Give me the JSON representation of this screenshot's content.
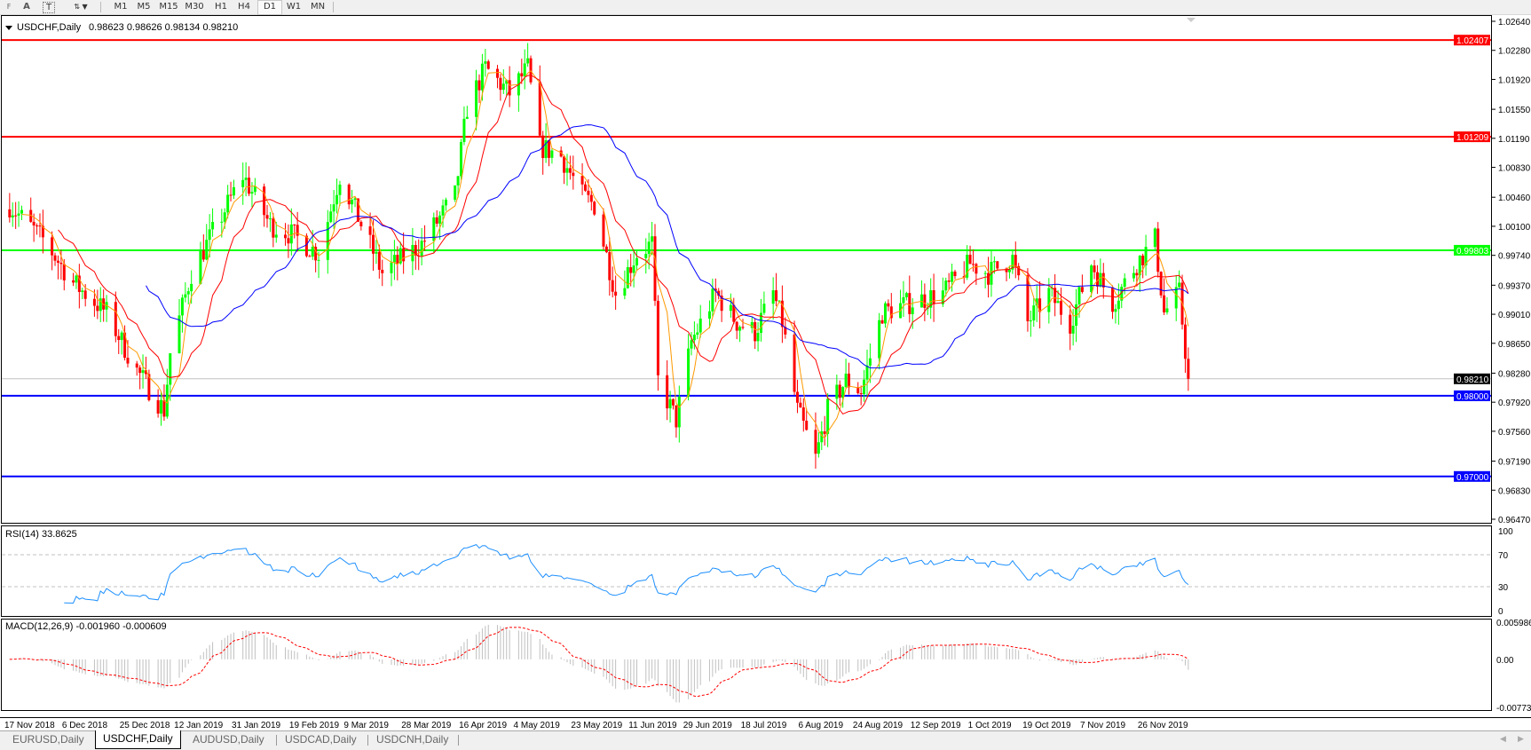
{
  "toolbar": {
    "tools": [
      {
        "icon": "period-separator-icon",
        "label": "F"
      },
      {
        "icon": "text-icon",
        "label": "A"
      },
      {
        "icon": "text-label-icon",
        "label": "T"
      },
      {
        "icon": "arrows-icon",
        "label": "▼"
      }
    ],
    "timeframes": [
      "M1",
      "M5",
      "M15",
      "M30",
      "H1",
      "H4",
      "D1",
      "W1",
      "MN"
    ],
    "active_timeframe": "D1"
  },
  "chart": {
    "symbol_label": "USDCHF,Daily",
    "ohlc": "0.98623 0.98626 0.98134 0.98210",
    "price_axis": [
      "1.02640",
      "1.02280",
      "1.01920",
      "1.01550",
      "1.01190",
      "1.00830",
      "1.00460",
      "1.00100",
      "0.99740",
      "0.99370",
      "0.99010",
      "0.98650",
      "0.98280",
      "0.97920",
      "0.97560",
      "0.97190",
      "0.96830",
      "0.96470"
    ],
    "price_range": [
      0.9647,
      1.0264
    ],
    "horizontal_lines": [
      {
        "price": "1.02407",
        "color": "#ff0000"
      },
      {
        "price": "1.01209",
        "color": "#ff0000"
      },
      {
        "price": "0.99803",
        "color": "#00ff00"
      },
      {
        "price": "0.98000",
        "color": "#0000ff"
      },
      {
        "price": "0.97000",
        "color": "#0000ff"
      }
    ],
    "current_price": "0.98210",
    "date_axis": [
      "17 Nov 2018",
      "6 Dec 2018",
      "25 Dec 2018",
      "12 Jan 2019",
      "31 Jan 2019",
      "19 Feb 2019",
      "9 Mar 2019",
      "28 Mar 2019",
      "16 Apr 2019",
      "4 May 2019",
      "23 May 2019",
      "11 Jun 2019",
      "29 Jun 2019",
      "18 Jul 2019",
      "6 Aug 2019",
      "24 Aug 2019",
      "12 Sep 2019",
      "1 Oct 2019",
      "19 Oct 2019",
      "7 Nov 2019",
      "26 Nov 2019"
    ],
    "colors": {
      "bull": "#00ff00",
      "bear": "#ff0000",
      "ma_fast": "#ff9900",
      "ma_mid": "#ff0000",
      "ma_slow": "#0000ff",
      "rsi": "#1e90ff",
      "macd_hist": "#c0c0c0",
      "macd_signal": "#ff0000"
    },
    "moving_averages": [
      5,
      13,
      34
    ]
  },
  "chart_data": {
    "type": "candlestick",
    "close_keypoints": [
      [
        "2018-11-19",
        1.0036
      ],
      [
        "2018-11-30",
        0.9994
      ],
      [
        "2018-12-10",
        0.994
      ],
      [
        "2018-12-21",
        0.9903
      ],
      [
        "2018-12-31",
        0.9831
      ],
      [
        "2019-01-09",
        0.9782
      ],
      [
        "2019-01-11",
        0.9853
      ],
      [
        "2019-01-18",
        0.9952
      ],
      [
        "2019-02-04",
        1.0073
      ],
      [
        "2019-02-13",
        1.0012
      ],
      [
        "2019-02-21",
        0.9998
      ],
      [
        "2019-03-01",
        0.9976
      ],
      [
        "2019-03-08",
        1.0073
      ],
      [
        "2019-03-22",
        0.9952
      ],
      [
        "2019-04-04",
        0.9988
      ],
      [
        "2019-04-15",
        1.0048
      ],
      [
        "2019-04-19",
        1.0157
      ],
      [
        "2019-04-25",
        1.0206
      ],
      [
        "2019-05-03",
        1.0175
      ],
      [
        "2019-05-09",
        1.0206
      ],
      [
        "2019-05-13",
        1.0109
      ],
      [
        "2019-05-20",
        1.0097
      ],
      [
        "2019-05-27",
        1.0048
      ],
      [
        "2019-05-31",
        1.0036
      ],
      [
        "2019-06-07",
        0.9927
      ],
      [
        "2019-06-14",
        0.9976
      ],
      [
        "2019-06-19",
        0.9988
      ],
      [
        "2019-06-21",
        0.9819
      ],
      [
        "2019-06-27",
        0.977
      ],
      [
        "2019-07-02",
        0.9867
      ],
      [
        "2019-07-10",
        0.9927
      ],
      [
        "2019-07-17",
        0.9891
      ],
      [
        "2019-07-23",
        0.9879
      ],
      [
        "2019-07-29",
        0.9927
      ],
      [
        "2019-08-01",
        0.9891
      ],
      [
        "2019-08-06",
        0.9782
      ],
      [
        "2019-08-12",
        0.9722
      ],
      [
        "2019-08-16",
        0.9782
      ],
      [
        "2019-08-22",
        0.9819
      ],
      [
        "2019-08-27",
        0.9806
      ],
      [
        "2019-09-03",
        0.9903
      ],
      [
        "2019-09-12",
        0.9915
      ],
      [
        "2019-09-23",
        0.9927
      ],
      [
        "2019-10-02",
        0.9964
      ],
      [
        "2019-10-08",
        0.9952
      ],
      [
        "2019-10-16",
        0.997
      ],
      [
        "2019-10-21",
        0.9891
      ],
      [
        "2019-10-28",
        0.9927
      ],
      [
        "2019-11-04",
        0.9891
      ],
      [
        "2019-11-11",
        0.9964
      ],
      [
        "2019-11-18",
        0.9915
      ],
      [
        "2019-11-26",
        0.9964
      ],
      [
        "2019-12-02",
        0.9994
      ],
      [
        "2019-12-05",
        0.9903
      ],
      [
        "2019-12-10",
        0.9927
      ],
      [
        "2019-12-13",
        0.9821
      ]
    ],
    "first_date": "2018-11-17"
  },
  "rsi": {
    "label": "RSI(14) 33.8625",
    "axis": [
      "100",
      "70",
      "30",
      "0"
    ]
  },
  "macd": {
    "label": "MACD(12,26,9) -0.001960 -0.000609",
    "axis": [
      "0.005986",
      "0.00",
      "-0.007737"
    ],
    "range": [
      -0.007737,
      0.005986
    ]
  },
  "tabs": [
    "EURUSD,Daily",
    "USDCHF,Daily",
    "AUDUSD,Daily",
    "USDCAD,Daily",
    "USDCNH,Daily"
  ],
  "active_tab": "USDCHF,Daily"
}
